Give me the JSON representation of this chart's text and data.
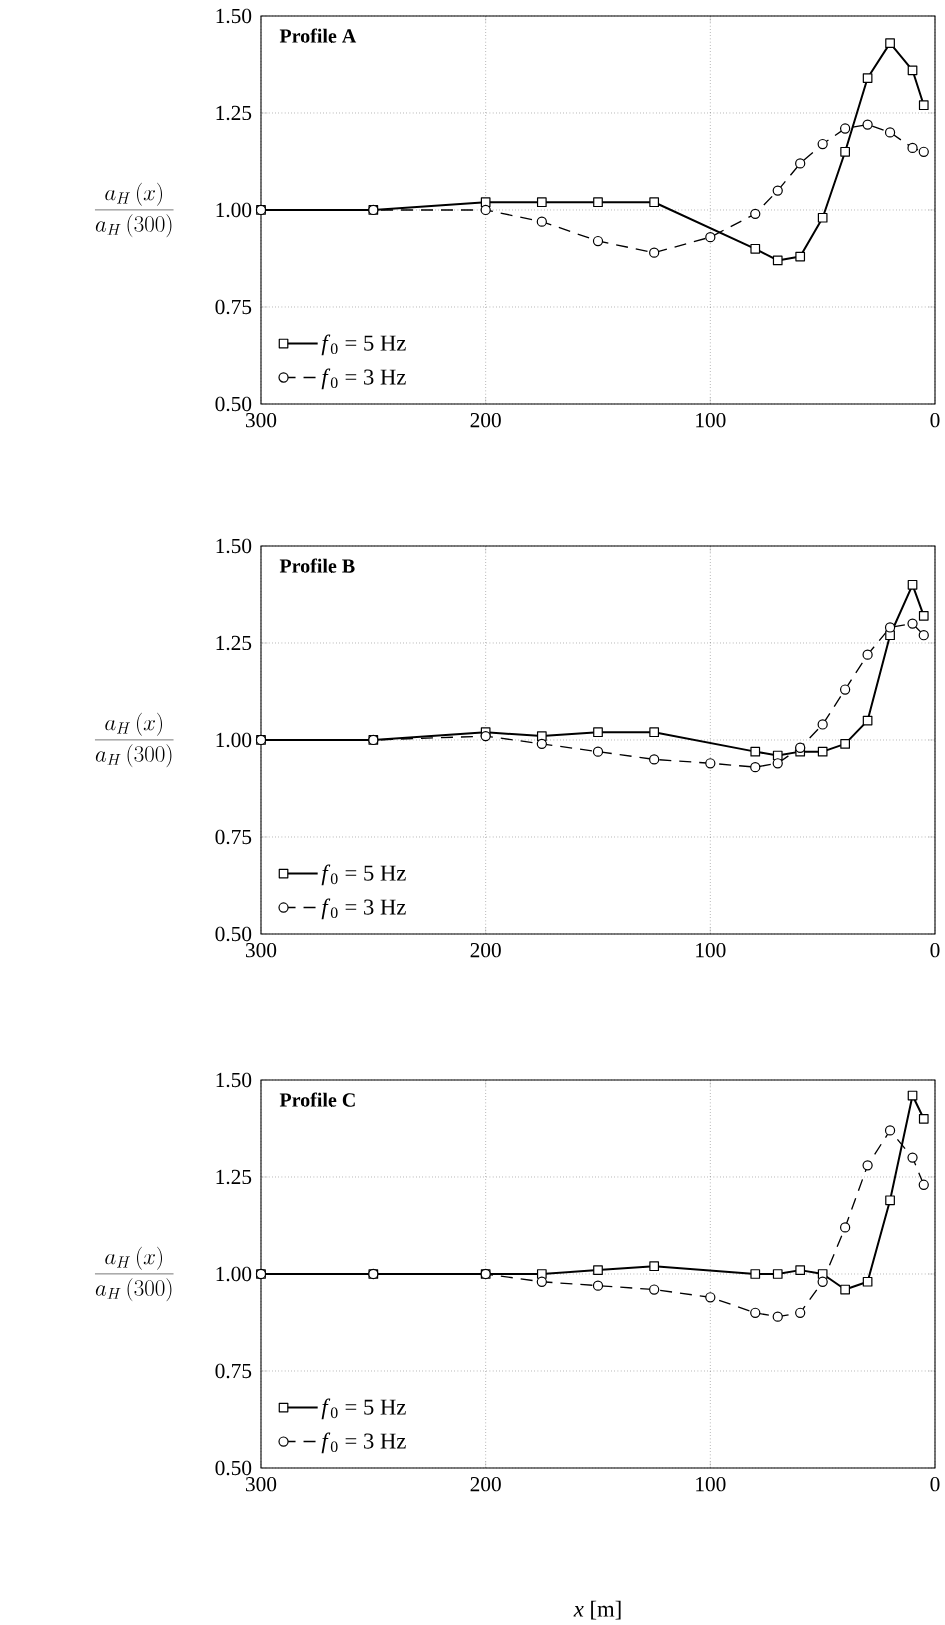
{
  "chart_data": [
    {
      "type": "line",
      "title": "Profile A",
      "ylabel": "\\frac{a_H\\left(x\\right)}{a_H\\left(300\\right)}",
      "xlim": [
        300,
        0
      ],
      "ylim": [
        0.5,
        1.5
      ],
      "xticks": [
        300,
        200,
        100,
        0
      ],
      "yticks": [
        {
          "value": 0.5,
          "label": "0.50"
        },
        {
          "value": 0.75,
          "label": "0.75"
        },
        {
          "value": 1.0,
          "label": "1.00"
        },
        {
          "value": 1.25,
          "label": "1.25"
        },
        {
          "value": 1.5,
          "label": "1.50"
        }
      ],
      "grid": true,
      "legend": "bottom left",
      "series": [
        {
          "name": "*f*$_{0}$ = 5 Hz",
          "color": "#000000",
          "marker": "square",
          "line_style": "solid",
          "x": [
            300,
            250,
            200,
            175,
            150,
            125,
            80,
            70,
            60,
            50,
            40,
            30,
            20,
            10,
            5
          ],
          "values": [
            1.0,
            1.0,
            1.02,
            1.02,
            1.02,
            1.02,
            0.9,
            0.87,
            0.88,
            0.98,
            1.15,
            1.34,
            1.43,
            1.36,
            1.27
          ]
        },
        {
          "name": "*f*$_{0}$ = 3 Hz",
          "color": "#000000",
          "marker": "circle",
          "line_style": "dashed",
          "x": [
            300,
            250,
            200,
            175,
            150,
            125,
            100,
            80,
            70,
            60,
            50,
            40,
            30,
            20,
            10,
            5
          ],
          "values": [
            1.0,
            1.0,
            1.0,
            0.97,
            0.92,
            0.89,
            0.93,
            0.99,
            1.05,
            1.12,
            1.17,
            1.21,
            1.22,
            1.2,
            1.16,
            1.15
          ]
        }
      ]
    },
    {
      "type": "line",
      "title": "Profile B",
      "ylabel": "\\frac{a_H\\left(x\\right)}{a_H\\left(300\\right)}",
      "xlim": [
        300,
        0
      ],
      "ylim": [
        0.5,
        1.5
      ],
      "xticks": [
        300,
        200,
        100,
        0
      ],
      "yticks": [
        {
          "value": 0.5,
          "label": "0.50"
        },
        {
          "value": 0.75,
          "label": "0.75"
        },
        {
          "value": 1.0,
          "label": "1.00"
        },
        {
          "value": 1.25,
          "label": "1.25"
        },
        {
          "value": 1.5,
          "label": "1.50"
        }
      ],
      "grid": true,
      "legend": "bottom left",
      "series": [
        {
          "name": "*f*$_{0}$ = 5 Hz",
          "color": "#000000",
          "marker": "square",
          "line_style": "solid",
          "x": [
            300,
            250,
            200,
            175,
            150,
            125,
            80,
            70,
            60,
            50,
            40,
            30,
            20,
            10,
            5
          ],
          "values": [
            1.0,
            1.0,
            1.02,
            1.01,
            1.02,
            1.02,
            0.97,
            0.96,
            0.97,
            0.97,
            0.99,
            1.05,
            1.27,
            1.4,
            1.32
          ]
        },
        {
          "name": "*f*$_{0}$ = 3 Hz",
          "color": "#000000",
          "marker": "circle",
          "line_style": "dashed",
          "x": [
            300,
            250,
            200,
            175,
            150,
            125,
            100,
            80,
            70,
            60,
            50,
            40,
            30,
            20,
            10,
            5
          ],
          "values": [
            1.0,
            1.0,
            1.01,
            0.99,
            0.97,
            0.95,
            0.94,
            0.93,
            0.94,
            0.98,
            1.04,
            1.13,
            1.22,
            1.29,
            1.3,
            1.27
          ]
        }
      ]
    },
    {
      "type": "line",
      "title": "Profile C",
      "xlabel": "*x* [m]",
      "ylabel": "\\frac{a_H\\left(x\\right)}{a_H\\left(300\\right)}",
      "xlim": [
        300,
        0
      ],
      "ylim": [
        0.5,
        1.5
      ],
      "xticks": [
        300,
        200,
        100,
        0
      ],
      "yticks": [
        {
          "value": 0.5,
          "label": "0.50"
        },
        {
          "value": 0.75,
          "label": "0.75"
        },
        {
          "value": 1.0,
          "label": "1.00"
        },
        {
          "value": 1.25,
          "label": "1.25"
        },
        {
          "value": 1.5,
          "label": "1.50"
        }
      ],
      "grid": true,
      "legend": "bottom left",
      "series": [
        {
          "name": "*f*$_{0}$ = 5 Hz",
          "color": "#000000",
          "marker": "square",
          "line_style": "solid",
          "x": [
            300,
            250,
            200,
            175,
            150,
            125,
            80,
            70,
            60,
            50,
            40,
            30,
            20,
            10,
            5
          ],
          "values": [
            1.0,
            1.0,
            1.0,
            1.0,
            1.01,
            1.02,
            1.0,
            1.0,
            1.01,
            1.0,
            0.96,
            0.98,
            1.19,
            1.46,
            1.4
          ]
        },
        {
          "name": "*f*$_{0}$ = 3 Hz",
          "color": "#000000",
          "marker": "circle",
          "line_style": "dashed",
          "x": [
            300,
            250,
            200,
            175,
            150,
            125,
            100,
            80,
            70,
            60,
            50,
            40,
            30,
            20,
            10,
            5
          ],
          "values": [
            1.0,
            1.0,
            1.0,
            0.98,
            0.97,
            0.96,
            0.94,
            0.9,
            0.89,
            0.9,
            0.98,
            1.12,
            1.28,
            1.37,
            1.3,
            1.23
          ]
        }
      ]
    }
  ]
}
